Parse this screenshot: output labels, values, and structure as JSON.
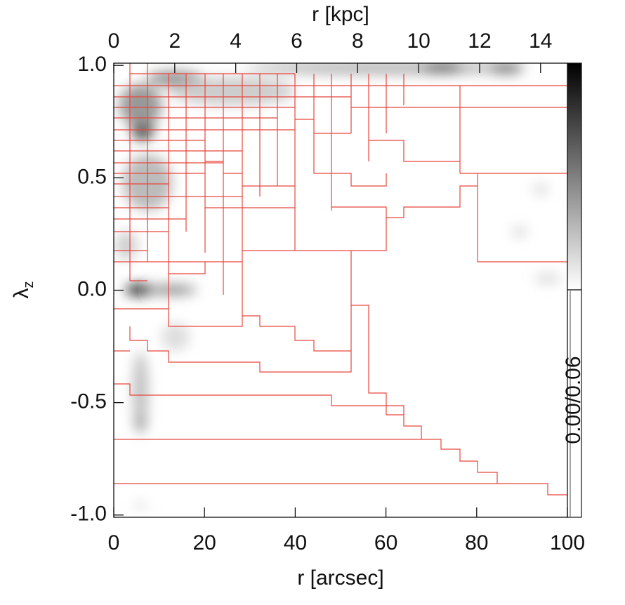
{
  "chart_data": {
    "type": "heatmap",
    "xlabel": "r [arcsec]",
    "x2label": "r [kpc]",
    "ylabel": "λ",
    "ylabel_sub": "z",
    "colorbar_label": "0.00/0.06",
    "xlim": [
      0,
      100
    ],
    "xticks": [
      0,
      20,
      40,
      60,
      80,
      100
    ],
    "x2lim": [
      0,
      14.88
    ],
    "x2ticks": [
      0,
      2,
      4,
      6,
      8,
      10,
      12,
      14
    ],
    "ylim": [
      -1.01,
      1.01
    ],
    "yticks": [
      {
        "value": 1.0,
        "label": "1.0"
      },
      {
        "value": 0.5,
        "label": "0.5"
      },
      {
        "value": 0.0,
        "label": "0.0"
      },
      {
        "value": -0.5,
        "label": "-0.5"
      },
      {
        "value": -1.0,
        "label": "-1.0"
      }
    ]
  }
}
